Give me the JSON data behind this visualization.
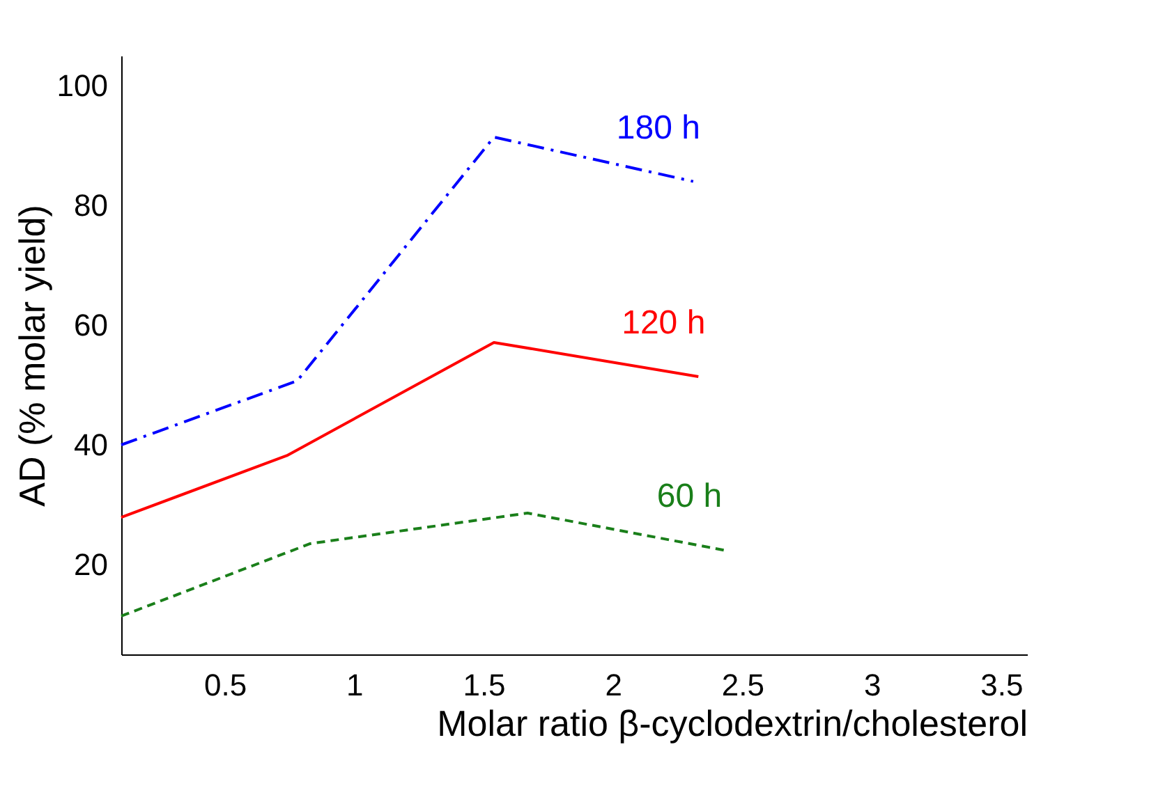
{
  "chart_data": {
    "type": "line",
    "xlabel": "Molar ratio β-cyclodextrin/cholesterol",
    "ylabel": "AD (% molar yield)",
    "xlim": [
      0.1,
      3.6
    ],
    "xticks": [
      0.5,
      1,
      1.5,
      2,
      2.5,
      3,
      3.5
    ],
    "ylim": [
      5,
      105
    ],
    "yticks": [
      20,
      40,
      60,
      80,
      100
    ],
    "grid": false,
    "series": [
      {
        "name": "180 h",
        "color": "#0000ff",
        "line_style": "dashdot",
        "x": [
          0.1,
          0.78,
          1.54,
          2.31
        ],
        "values": [
          40,
          50.7,
          91.4,
          84
        ]
      },
      {
        "name": "120 h",
        "color": "#ff0000",
        "line_style": "solid",
        "x": [
          0.1,
          0.74,
          1.54,
          2.33
        ],
        "values": [
          27.9,
          38.2,
          57.1,
          51.4
        ]
      },
      {
        "name": "60 h",
        "color": "#1a7f1a",
        "line_style": "dashed",
        "x": [
          0.1,
          0.83,
          1.67,
          2.43
        ],
        "values": [
          11.4,
          23.5,
          28.6,
          22.4
        ]
      }
    ]
  }
}
